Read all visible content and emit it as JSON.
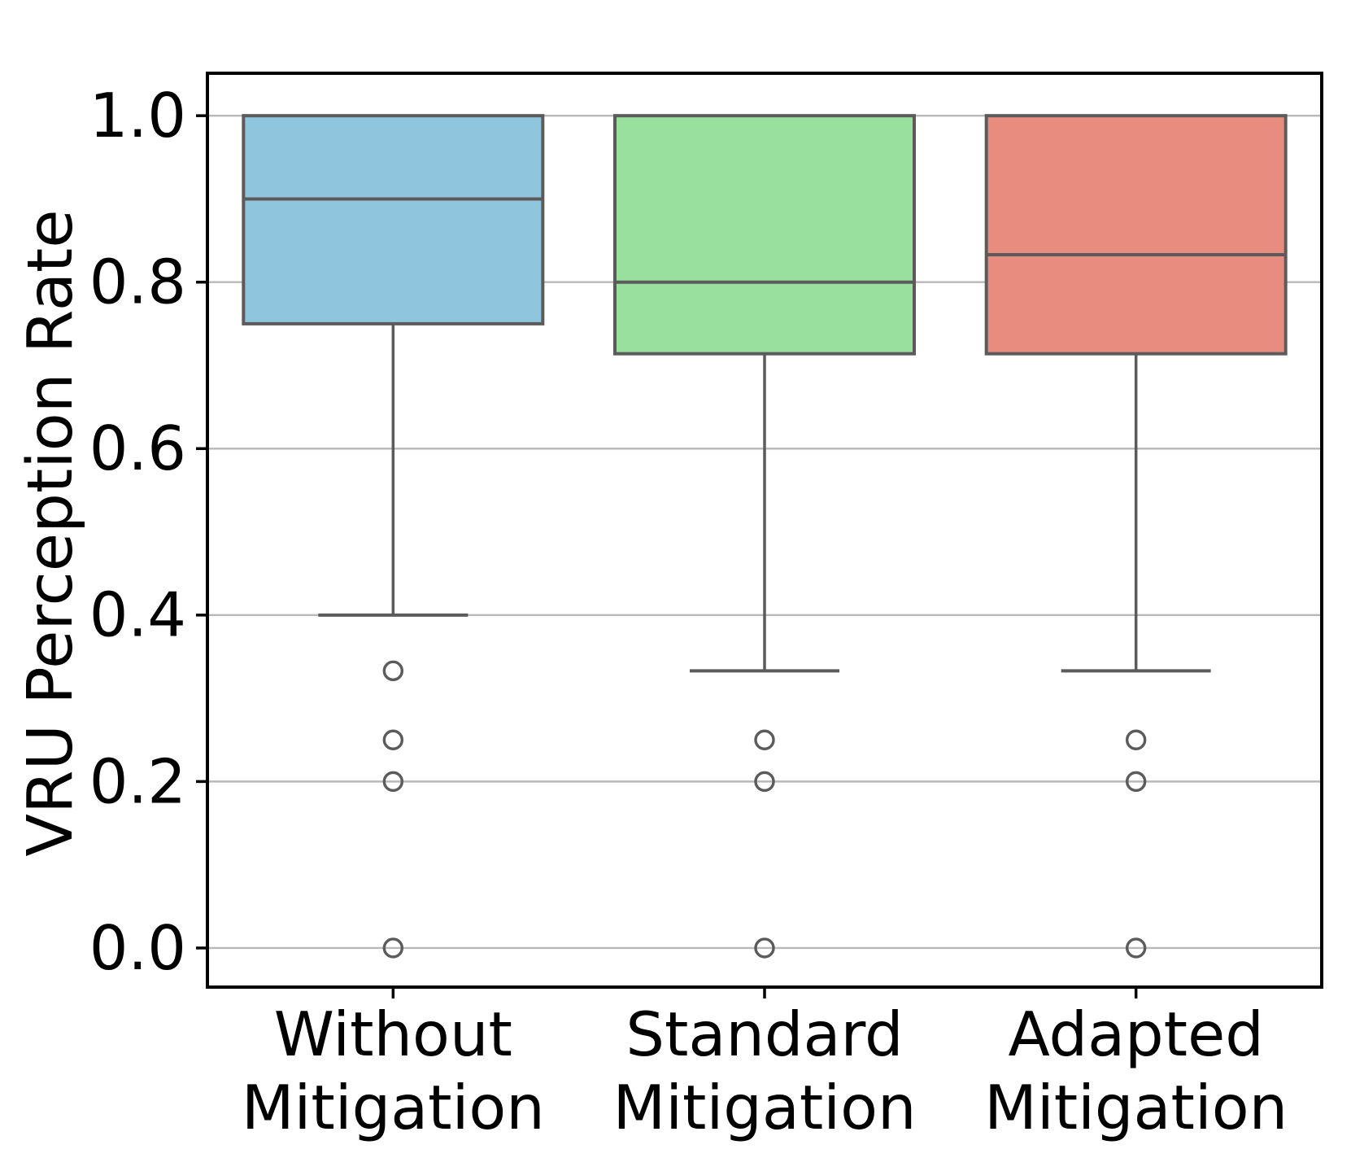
{
  "chart_data": {
    "type": "box",
    "title": "",
    "xlabel": "",
    "ylabel": "VRU Perception Rate",
    "grid": "horizontal",
    "legend": "none",
    "ylim": [
      -0.047,
      1.051
    ],
    "xlim": [
      0.5,
      3.5
    ],
    "y_ticks": [
      {
        "value": 1.0,
        "label": "1.0"
      },
      {
        "value": 0.8,
        "label": "0.8"
      },
      {
        "value": 0.6,
        "label": "0.6"
      },
      {
        "value": 0.4,
        "label": "0.4"
      },
      {
        "value": 0.2,
        "label": "0.2"
      },
      {
        "value": 0.0,
        "label": "0.0"
      }
    ],
    "categories": [
      {
        "position": 1,
        "line1": "Without",
        "line2": "Mitigation"
      },
      {
        "position": 2,
        "line1": "Standard",
        "line2": "Mitigation"
      },
      {
        "position": 3,
        "line1": "Adapted",
        "line2": "Mitigation"
      }
    ],
    "series": [
      {
        "name": "Without Mitigation",
        "position": 1,
        "q1": 0.75,
        "median": 0.9,
        "q3": 1.0,
        "whisker_low": 0.4,
        "whisker_high": 1.0,
        "outliers": [
          0.333,
          0.25,
          0.2,
          0.0
        ],
        "fill_color": "#90c5de"
      },
      {
        "name": "Standard Mitigation",
        "position": 2,
        "q1": 0.714,
        "median": 0.8,
        "q3": 1.0,
        "whisker_low": 0.333,
        "whisker_high": 1.0,
        "outliers": [
          0.25,
          0.2,
          0.0
        ],
        "fill_color": "#99df9e"
      },
      {
        "name": "Adapted Mitigation",
        "position": 3,
        "q1": 0.714,
        "median": 0.833,
        "q3": 1.0,
        "whisker_low": 0.333,
        "whisker_high": 1.0,
        "outliers": [
          0.25,
          0.2,
          0.0
        ],
        "fill_color": "#e88c80"
      }
    ],
    "colors": {
      "box_edge": "#5b5b5b",
      "median_line": "#5b5b5b",
      "whisker": "#5b5b5b",
      "outlier_edge": "#5b5b5b",
      "gridline": "#b9b9b9",
      "spine": "#000000",
      "text": "#000000",
      "background": "#ffffff"
    }
  }
}
